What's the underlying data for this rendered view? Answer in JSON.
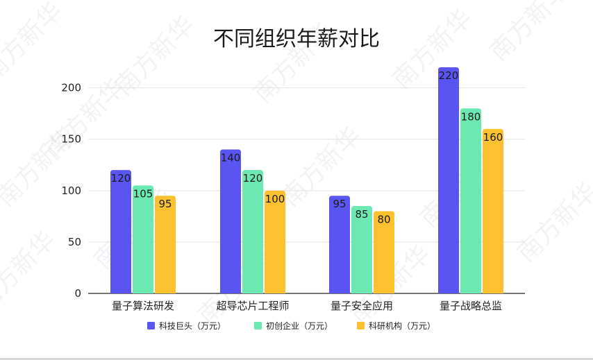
{
  "watermark": "南方新华",
  "chart_data": {
    "type": "bar",
    "title": "不同组织年薪对比",
    "categories": [
      "量子算法研发",
      "超导芯片工程师",
      "量子安全应用",
      "量子战略总监"
    ],
    "series": [
      {
        "name": "科技巨头（万元）",
        "values": [
          120,
          140,
          95,
          220
        ],
        "color": "#5a55f0"
      },
      {
        "name": "初创企业（万元）",
        "values": [
          105,
          120,
          85,
          180
        ],
        "color": "#6ce8b2"
      },
      {
        "name": "科研机构（万元）",
        "values": [
          95,
          100,
          80,
          160
        ],
        "color": "#fcc12e"
      }
    ],
    "yticks": [
      0,
      50,
      100,
      150,
      200
    ],
    "ylim": [
      0,
      220
    ],
    "grid": true,
    "legend_position": "bottom"
  }
}
